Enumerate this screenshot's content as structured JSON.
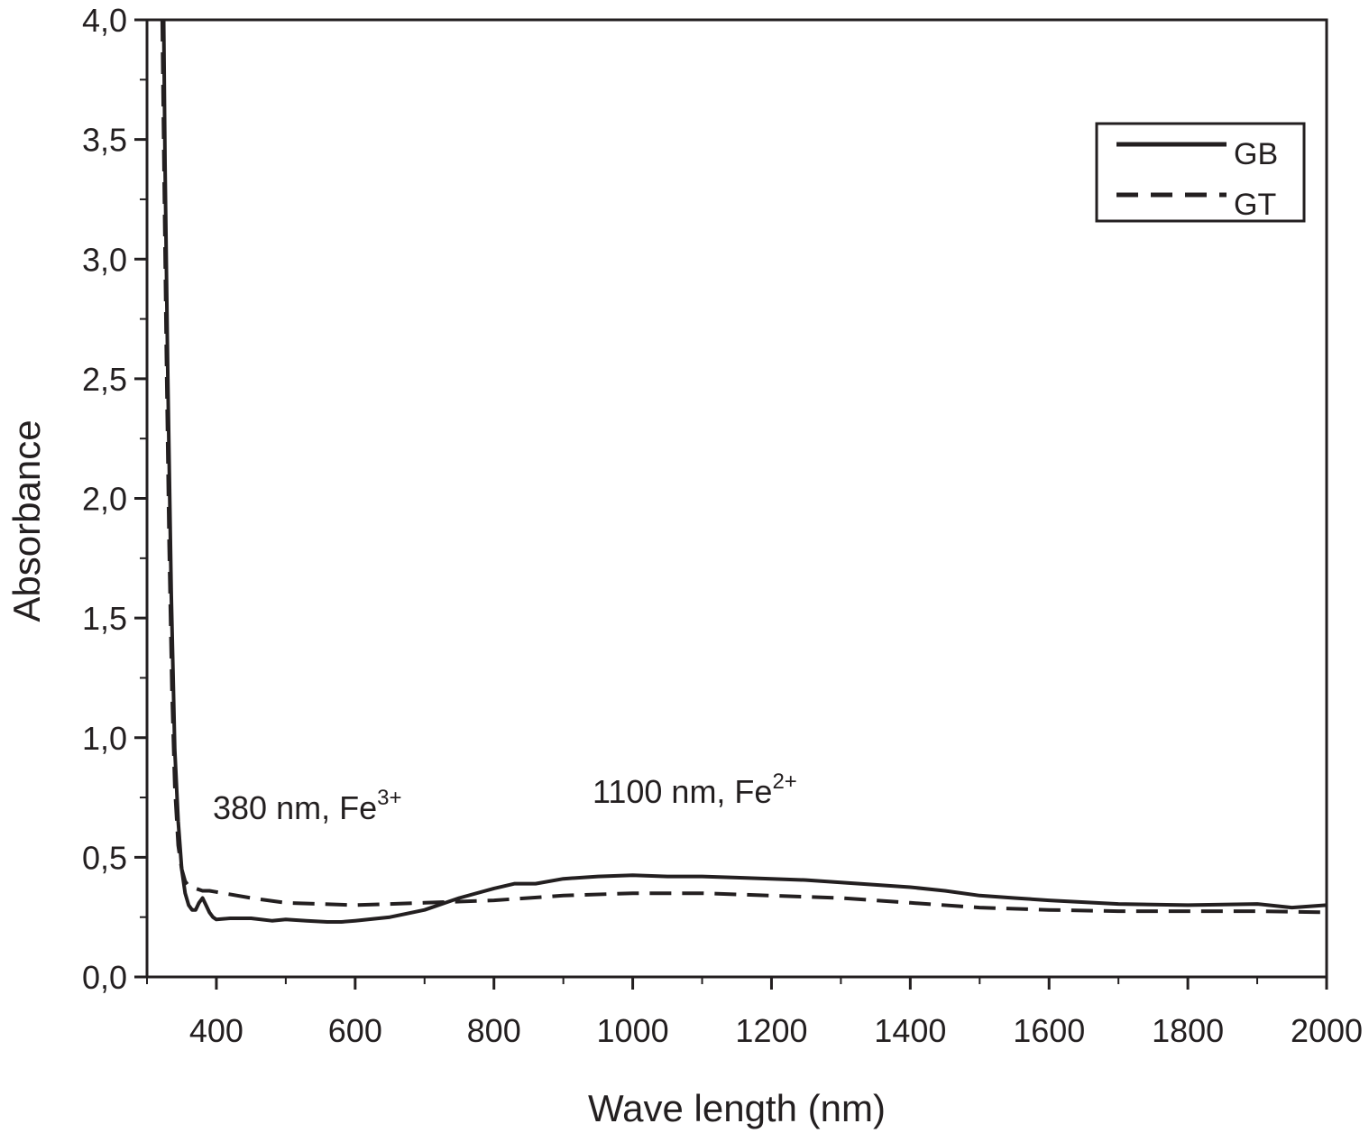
{
  "chart_data": {
    "type": "line",
    "xlabel": "Wave length (nm)",
    "ylabel": "Absorbance",
    "xlim": [
      300,
      2000
    ],
    "ylim": [
      0,
      4
    ],
    "x_ticks": [
      400,
      600,
      800,
      1000,
      1200,
      1400,
      1600,
      1800,
      2000
    ],
    "x_tick_labels": [
      "400",
      "600",
      "800",
      "1000",
      "1200",
      "1400",
      "1600",
      "1800",
      "2000"
    ],
    "y_ticks": [
      0,
      0.5,
      1,
      1.5,
      2,
      2.5,
      3,
      3.5,
      4
    ],
    "y_tick_labels": [
      "0,0",
      "0,5",
      "1,0",
      "1,5",
      "2,0",
      "2,5",
      "3,0",
      "3,5",
      "4,0"
    ],
    "grid": false,
    "legend_position": "top-right",
    "annotations": [
      {
        "text": "380 nm, Fe",
        "sup": "3+",
        "x": 400,
        "y": 0.7
      },
      {
        "text": "1100 nm, Fe",
        "sup": "2+",
        "x": 945,
        "y": 0.72
      }
    ],
    "series": [
      {
        "name": "GB",
        "style": "solid",
        "color": "#231f20",
        "x": [
          324,
          326,
          330,
          335,
          340,
          345,
          350,
          355,
          360,
          365,
          370,
          375,
          380,
          385,
          390,
          395,
          400,
          420,
          450,
          480,
          500,
          530,
          560,
          580,
          600,
          650,
          700,
          750,
          800,
          830,
          860,
          900,
          950,
          1000,
          1050,
          1100,
          1150,
          1200,
          1250,
          1300,
          1350,
          1400,
          1450,
          1500,
          1550,
          1600,
          1700,
          1800,
          1900,
          1950,
          2000
        ],
        "y": [
          4.0,
          3.4,
          2.5,
          1.6,
          0.95,
          0.65,
          0.45,
          0.35,
          0.3,
          0.28,
          0.28,
          0.31,
          0.33,
          0.3,
          0.27,
          0.25,
          0.24,
          0.245,
          0.245,
          0.235,
          0.24,
          0.235,
          0.23,
          0.23,
          0.235,
          0.25,
          0.28,
          0.33,
          0.37,
          0.39,
          0.39,
          0.41,
          0.42,
          0.425,
          0.42,
          0.42,
          0.415,
          0.41,
          0.405,
          0.395,
          0.385,
          0.375,
          0.36,
          0.34,
          0.33,
          0.32,
          0.305,
          0.3,
          0.305,
          0.29,
          0.3
        ]
      },
      {
        "name": "GT",
        "style": "dashed",
        "color": "#231f20",
        "x": [
          322,
          324,
          328,
          332,
          336,
          340,
          345,
          350,
          355,
          360,
          370,
          380,
          390,
          400,
          450,
          500,
          600,
          700,
          800,
          900,
          1000,
          1100,
          1200,
          1300,
          1400,
          1500,
          1600,
          1700,
          1800,
          1900,
          2000
        ],
        "y": [
          4.0,
          3.5,
          2.6,
          1.8,
          1.2,
          0.8,
          0.55,
          0.45,
          0.4,
          0.38,
          0.37,
          0.36,
          0.36,
          0.355,
          0.33,
          0.31,
          0.3,
          0.31,
          0.32,
          0.34,
          0.35,
          0.35,
          0.34,
          0.33,
          0.31,
          0.29,
          0.28,
          0.275,
          0.275,
          0.275,
          0.27
        ]
      }
    ]
  }
}
